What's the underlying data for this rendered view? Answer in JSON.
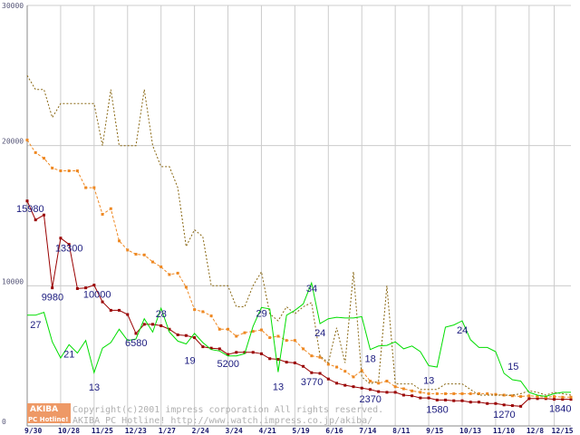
{
  "chart_data": {
    "type": "line",
    "ylim": [
      0,
      30000
    ],
    "y_ticks": [
      "30000",
      "20000",
      "10000",
      "0"
    ],
    "x_tick_labels": [
      "9/30",
      "10/28",
      "11/25",
      "12/23",
      "1/27",
      "2/24",
      "3/24",
      "4/21",
      "5/19",
      "6/16",
      "7/14",
      "8/11",
      "9/15",
      "10/13",
      "11/10",
      "12/8",
      "12/15"
    ],
    "series": [
      {
        "name": "red-price",
        "color": "#990000",
        "style": "solid-square",
        "points": [
          [
            0,
            16050
          ],
          [
            1,
            14700
          ],
          [
            2,
            15050
          ],
          [
            3,
            9850
          ],
          [
            4,
            13400
          ],
          [
            5,
            12950
          ],
          [
            6,
            9800
          ],
          [
            7,
            9850
          ],
          [
            8,
            10050
          ],
          [
            9,
            8850
          ],
          [
            10,
            8250
          ],
          [
            11,
            8250
          ],
          [
            12,
            7950
          ],
          [
            13,
            6600
          ],
          [
            14,
            7250
          ],
          [
            15,
            7250
          ],
          [
            16,
            7150
          ],
          [
            17,
            6900
          ],
          [
            18,
            6500
          ],
          [
            19,
            6450
          ],
          [
            20,
            6300
          ],
          [
            21,
            5650
          ],
          [
            22,
            5550
          ],
          [
            23,
            5500
          ],
          [
            24,
            5100
          ],
          [
            25,
            5250
          ],
          [
            26,
            5250
          ],
          [
            27,
            5250
          ],
          [
            28,
            5150
          ],
          [
            29,
            4800
          ],
          [
            30,
            4750
          ],
          [
            31,
            4550
          ],
          [
            32,
            4500
          ],
          [
            33,
            4250
          ],
          [
            34,
            3800
          ],
          [
            35,
            3750
          ],
          [
            36,
            3350
          ],
          [
            37,
            3050
          ],
          [
            38,
            2900
          ],
          [
            39,
            2800
          ],
          [
            40,
            2700
          ],
          [
            41,
            2600
          ],
          [
            42,
            2450
          ],
          [
            43,
            2400
          ],
          [
            44,
            2400
          ],
          [
            45,
            2200
          ],
          [
            46,
            2150
          ],
          [
            47,
            2000
          ],
          [
            48,
            2000
          ],
          [
            49,
            1850
          ],
          [
            50,
            1850
          ],
          [
            51,
            1800
          ],
          [
            52,
            1800
          ],
          [
            53,
            1700
          ],
          [
            54,
            1700
          ],
          [
            55,
            1600
          ],
          [
            56,
            1600
          ],
          [
            57,
            1500
          ],
          [
            58,
            1450
          ],
          [
            59,
            1400
          ],
          [
            60,
            1950
          ],
          [
            61,
            1950
          ],
          [
            62,
            1950
          ],
          [
            63,
            1900
          ],
          [
            64,
            1900
          ],
          [
            65,
            1900
          ]
        ]
      },
      {
        "name": "orange-price",
        "color": "#ee8822",
        "style": "dashed-square",
        "points": [
          [
            0,
            20400
          ],
          [
            1,
            19500
          ],
          [
            2,
            19100
          ],
          [
            3,
            18400
          ],
          [
            4,
            18200
          ],
          [
            5,
            18200
          ],
          [
            6,
            18200
          ],
          [
            7,
            17000
          ],
          [
            8,
            17000
          ],
          [
            9,
            15100
          ],
          [
            10,
            15500
          ],
          [
            11,
            13200
          ],
          [
            12,
            12550
          ],
          [
            13,
            12250
          ],
          [
            14,
            12200
          ],
          [
            15,
            11700
          ],
          [
            16,
            11350
          ],
          [
            17,
            10800
          ],
          [
            18,
            10900
          ],
          [
            19,
            9900
          ],
          [
            20,
            8300
          ],
          [
            21,
            8150
          ],
          [
            22,
            7850
          ],
          [
            23,
            6900
          ],
          [
            24,
            6900
          ],
          [
            25,
            6400
          ],
          [
            26,
            6650
          ],
          [
            27,
            6750
          ],
          [
            28,
            6850
          ],
          [
            29,
            6300
          ],
          [
            30,
            6400
          ],
          [
            31,
            6100
          ],
          [
            32,
            6100
          ],
          [
            33,
            5500
          ],
          [
            34,
            5000
          ],
          [
            35,
            4900
          ],
          [
            36,
            4400
          ],
          [
            37,
            4200
          ],
          [
            38,
            3900
          ],
          [
            39,
            3500
          ],
          [
            40,
            3950
          ],
          [
            41,
            3200
          ],
          [
            42,
            3050
          ],
          [
            43,
            3200
          ],
          [
            44,
            2800
          ],
          [
            45,
            2650
          ],
          [
            46,
            2500
          ],
          [
            47,
            2400
          ],
          [
            48,
            2300
          ],
          [
            49,
            2300
          ],
          [
            50,
            2300
          ],
          [
            51,
            2300
          ],
          [
            52,
            2300
          ],
          [
            53,
            2300
          ],
          [
            54,
            2300
          ],
          [
            55,
            2300
          ],
          [
            56,
            2250
          ],
          [
            57,
            2200
          ],
          [
            58,
            2150
          ],
          [
            59,
            2100
          ],
          [
            60,
            2150
          ],
          [
            61,
            2100
          ],
          [
            62,
            2050
          ],
          [
            63,
            2100
          ],
          [
            64,
            2050
          ],
          [
            65,
            2050
          ]
        ]
      },
      {
        "name": "olive-price",
        "color": "#886611",
        "style": "dotted",
        "points": [
          [
            0,
            25000
          ],
          [
            1,
            24000
          ],
          [
            2,
            24000
          ],
          [
            3,
            22000
          ],
          [
            4,
            23000
          ],
          [
            5,
            23000
          ],
          [
            6,
            23000
          ],
          [
            7,
            23000
          ],
          [
            8,
            23000
          ],
          [
            9,
            20000
          ],
          [
            10,
            24000
          ],
          [
            11,
            20000
          ],
          [
            12,
            20000
          ],
          [
            13,
            20000
          ],
          [
            14,
            24000
          ],
          [
            15,
            20000
          ],
          [
            16,
            18500
          ],
          [
            17,
            18500
          ],
          [
            18,
            17000
          ],
          [
            19,
            12800
          ],
          [
            20,
            14000
          ],
          [
            21,
            13500
          ],
          [
            22,
            10000
          ],
          [
            23,
            10000
          ],
          [
            24,
            10000
          ],
          [
            25,
            8500
          ],
          [
            26,
            8500
          ],
          [
            27,
            10000
          ],
          [
            28,
            11000
          ],
          [
            29,
            8000
          ],
          [
            30,
            7500
          ],
          [
            31,
            8500
          ],
          [
            32,
            8000
          ],
          [
            33,
            8500
          ],
          [
            34,
            8800
          ],
          [
            35,
            5000
          ],
          [
            36,
            4500
          ],
          [
            37,
            7000
          ],
          [
            38,
            4500
          ],
          [
            39,
            11000
          ],
          [
            40,
            3500
          ],
          [
            41,
            3000
          ],
          [
            42,
            3200
          ],
          [
            43,
            10000
          ],
          [
            44,
            3000
          ],
          [
            45,
            3000
          ],
          [
            46,
            3000
          ],
          [
            47,
            2600
          ],
          [
            48,
            2600
          ],
          [
            49,
            2600
          ],
          [
            50,
            3000
          ],
          [
            51,
            3000
          ],
          [
            52,
            3000
          ],
          [
            53,
            2600
          ],
          [
            54,
            2200
          ],
          [
            55,
            2200
          ],
          [
            56,
            2200
          ],
          [
            57,
            2200
          ],
          [
            58,
            2200
          ],
          [
            59,
            2300
          ],
          [
            60,
            2500
          ],
          [
            61,
            2400
          ],
          [
            62,
            2200
          ],
          [
            63,
            2400
          ],
          [
            64,
            2300
          ],
          [
            65,
            2200
          ]
        ]
      },
      {
        "name": "green-count",
        "color": "#00dd00",
        "style": "solid",
        "points": [
          [
            0,
            7900
          ],
          [
            1,
            7900
          ],
          [
            2,
            8100
          ],
          [
            3,
            6000
          ],
          [
            4,
            4850
          ],
          [
            5,
            5800
          ],
          [
            6,
            5200
          ],
          [
            7,
            6100
          ],
          [
            8,
            3800
          ],
          [
            9,
            5550
          ],
          [
            10,
            5950
          ],
          [
            11,
            6900
          ],
          [
            12,
            6100
          ],
          [
            13,
            6200
          ],
          [
            14,
            7650
          ],
          [
            15,
            6700
          ],
          [
            16,
            8400
          ],
          [
            17,
            6700
          ],
          [
            18,
            6050
          ],
          [
            19,
            5850
          ],
          [
            20,
            6600
          ],
          [
            21,
            5950
          ],
          [
            22,
            5450
          ],
          [
            23,
            5350
          ],
          [
            24,
            5000
          ],
          [
            25,
            5000
          ],
          [
            26,
            5150
          ],
          [
            27,
            7100
          ],
          [
            28,
            8450
          ],
          [
            29,
            8350
          ],
          [
            30,
            3850
          ],
          [
            31,
            7900
          ],
          [
            32,
            8250
          ],
          [
            33,
            8700
          ],
          [
            34,
            10200
          ],
          [
            35,
            7300
          ],
          [
            36,
            7650
          ],
          [
            37,
            7750
          ],
          [
            38,
            7700
          ],
          [
            39,
            7700
          ],
          [
            40,
            7800
          ],
          [
            41,
            5450
          ],
          [
            42,
            5700
          ],
          [
            43,
            5750
          ],
          [
            44,
            6000
          ],
          [
            45,
            5500
          ],
          [
            46,
            5700
          ],
          [
            47,
            5300
          ],
          [
            48,
            4300
          ],
          [
            49,
            4200
          ],
          [
            50,
            7050
          ],
          [
            51,
            7200
          ],
          [
            52,
            7500
          ],
          [
            53,
            6150
          ],
          [
            54,
            5600
          ],
          [
            55,
            5600
          ],
          [
            56,
            5300
          ],
          [
            57,
            3750
          ],
          [
            58,
            3300
          ],
          [
            59,
            3200
          ],
          [
            60,
            2400
          ],
          [
            61,
            2200
          ],
          [
            62,
            2100
          ],
          [
            63,
            2300
          ],
          [
            64,
            2400
          ],
          [
            65,
            2400
          ]
        ]
      }
    ],
    "price_labels": [
      {
        "i": 0,
        "text": "15980"
      },
      {
        "i": 3,
        "text": "9980"
      },
      {
        "i": 4,
        "text": "13300"
      },
      {
        "i": 8,
        "text": "10000"
      },
      {
        "i": 13,
        "text": "6580"
      },
      {
        "i": 24,
        "text": "5200"
      },
      {
        "i": 34,
        "text": "3770"
      },
      {
        "i": 41,
        "text": "2370"
      },
      {
        "i": 49,
        "text": "1580"
      },
      {
        "i": 57,
        "text": "1270"
      },
      {
        "i": 65,
        "text": "1840"
      }
    ],
    "count_labels": [
      {
        "i": 1,
        "text": "27"
      },
      {
        "i": 5,
        "text": "21"
      },
      {
        "i": 8,
        "text": "13"
      },
      {
        "i": 16,
        "text": "28"
      },
      {
        "i": 19,
        "text": "19"
      },
      {
        "i": 28,
        "text": "29"
      },
      {
        "i": 30,
        "text": "13"
      },
      {
        "i": 34,
        "text": "34"
      },
      {
        "i": 35,
        "text": "24"
      },
      {
        "i": 41,
        "text": "18"
      },
      {
        "i": 48,
        "text": "13"
      },
      {
        "i": 52,
        "text": "24"
      },
      {
        "i": 57,
        "text": "15"
      }
    ]
  },
  "footer": {
    "logo_text": "AKIBA",
    "logo_sub": "PC Hotline!",
    "copyright": "Copyright(c)2001 impress corporation All rights reserved.",
    "site": "AKIBA PC Hotline!  http://www.watch.impress.co.jp/akiba/"
  },
  "colors": {
    "grid": "#cccccc",
    "axis": "#888888",
    "label": "#1a1a7e",
    "logo_bg": "#ee9966"
  }
}
